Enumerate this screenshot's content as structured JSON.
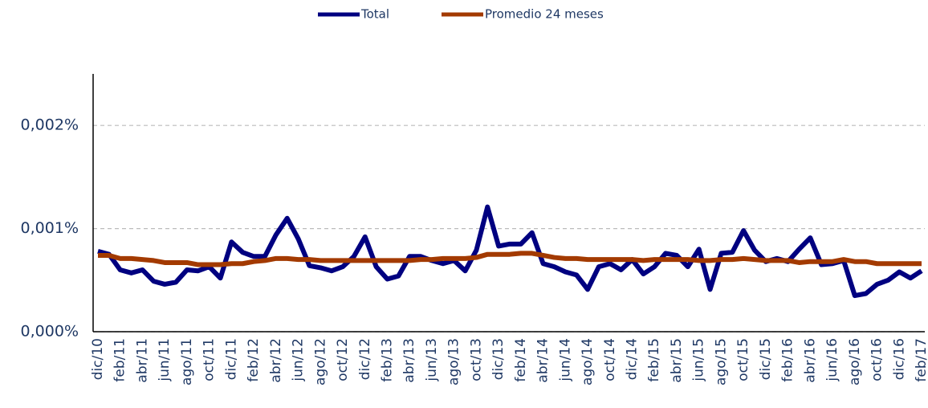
{
  "chart_data": {
    "type": "line",
    "categories": [
      "dic/10",
      null,
      "feb/11",
      null,
      "abr/11",
      null,
      "jun/11",
      null,
      "ago/11",
      null,
      "oct/11",
      null,
      "dic/11",
      null,
      "feb/12",
      null,
      "abr/12",
      null,
      "jun/12",
      null,
      "ago/12",
      null,
      "oct/12",
      null,
      "dic/12",
      null,
      "feb/13",
      null,
      "abr/13",
      null,
      "jun/13",
      null,
      "ago/13",
      null,
      "oct/13",
      null,
      "dic/13",
      null,
      "feb/14",
      null,
      "abr/14",
      null,
      "jun/14",
      null,
      "ago/14",
      null,
      "oct/14",
      null,
      "dic/14",
      null,
      "feb/15",
      null,
      "abr/15",
      null,
      "jun/15",
      null,
      "ago/15",
      null,
      "oct/15",
      null,
      "dic/15",
      null,
      "feb/16",
      null,
      "abr/16",
      null,
      "jun/16",
      null,
      "ago/16",
      null,
      "oct/16",
      null,
      "dic/16",
      null,
      "feb/17"
    ],
    "series": [
      {
        "name": "Total",
        "color": "#000080",
        "values": [
          0.00078,
          0.00075,
          0.0006,
          0.00057,
          0.0006,
          0.00049,
          0.00046,
          0.00048,
          0.0006,
          0.00059,
          0.00063,
          0.00052,
          0.00087,
          0.00077,
          0.00073,
          0.00073,
          0.00094,
          0.0011,
          0.0009,
          0.00064,
          0.00062,
          0.00059,
          0.00063,
          0.00073,
          0.00092,
          0.00063,
          0.00051,
          0.00054,
          0.00073,
          0.00073,
          0.00069,
          0.00066,
          0.00069,
          0.00059,
          0.00079,
          0.00121,
          0.00083,
          0.00085,
          0.00085,
          0.00096,
          0.00066,
          0.00063,
          0.00058,
          0.00055,
          0.00041,
          0.00063,
          0.00066,
          0.0006,
          0.0007,
          0.00056,
          0.00063,
          0.00076,
          0.00074,
          0.00063,
          0.0008,
          0.00041,
          0.00076,
          0.00077,
          0.00098,
          0.00079,
          0.00068,
          0.00071,
          0.00068,
          0.0008,
          0.00091,
          0.00065,
          0.00066,
          0.00069,
          0.00035,
          0.00037,
          0.00046,
          0.0005,
          0.00058,
          0.00052,
          0.00059
        ]
      },
      {
        "name": "Promedio 24 meses",
        "color": "#a33a00",
        "values": [
          0.00074,
          0.00074,
          0.00071,
          0.00071,
          0.0007,
          0.00069,
          0.00067,
          0.00067,
          0.00067,
          0.00065,
          0.00065,
          0.00065,
          0.00066,
          0.00066,
          0.00068,
          0.00069,
          0.00071,
          0.00071,
          0.0007,
          0.0007,
          0.00069,
          0.00069,
          0.00069,
          0.00069,
          0.00069,
          0.00069,
          0.00069,
          0.00069,
          0.00069,
          0.0007,
          0.0007,
          0.00071,
          0.00071,
          0.00071,
          0.00072,
          0.00075,
          0.00075,
          0.00075,
          0.00076,
          0.00076,
          0.00074,
          0.00072,
          0.00071,
          0.00071,
          0.0007,
          0.0007,
          0.0007,
          0.0007,
          0.0007,
          0.00069,
          0.0007,
          0.0007,
          0.0007,
          0.0007,
          0.00069,
          0.00069,
          0.0007,
          0.0007,
          0.00071,
          0.0007,
          0.00069,
          0.00069,
          0.00069,
          0.00067,
          0.00068,
          0.00068,
          0.00068,
          0.0007,
          0.00068,
          0.00068,
          0.00066,
          0.00066,
          0.00066,
          0.00066,
          0.00066
        ]
      }
    ],
    "ylim": [
      0,
      0.0025
    ],
    "yticks": [
      {
        "value": 0,
        "label": "0,000%"
      },
      {
        "value": 0.001,
        "label": "0,001%"
      },
      {
        "value": 0.002,
        "label": "0,002%"
      }
    ],
    "grid": true,
    "legend": "top"
  }
}
